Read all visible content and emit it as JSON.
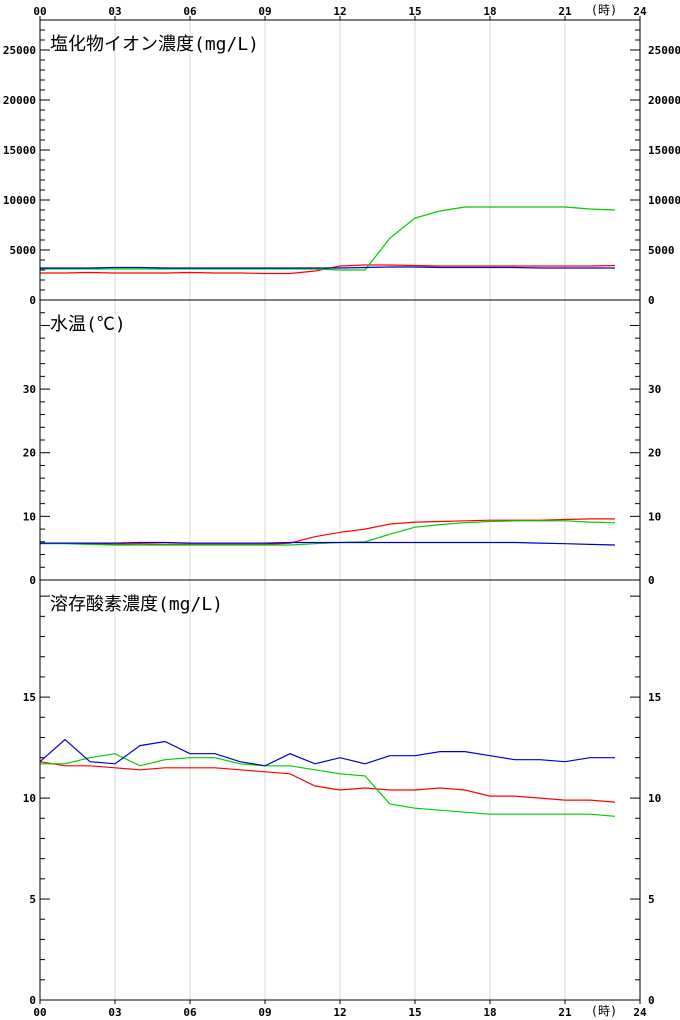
{
  "x_axis": {
    "ticks": [
      "00",
      "03",
      "06",
      "09",
      "12",
      "15",
      "18",
      "21",
      "24"
    ],
    "unit": "(時)",
    "range": [
      0,
      24
    ]
  },
  "colors": {
    "red": "#ff0000",
    "green": "#00cc00",
    "blue": "#0000cc",
    "grid": "#d8d8d8",
    "axis": "#000000"
  },
  "chart_data": [
    {
      "type": "line",
      "title": "塩化物イオン濃度(mg/L)",
      "ylim": [
        0,
        28000
      ],
      "yticks": [
        "0",
        "5000",
        "10000",
        "15000",
        "20000",
        "25000"
      ],
      "ytick_values": [
        0,
        5000,
        10000,
        15000,
        20000,
        25000
      ],
      "x": [
        0,
        1,
        2,
        3,
        4,
        5,
        6,
        7,
        8,
        9,
        10,
        11,
        12,
        13,
        14,
        15,
        16,
        17,
        18,
        19,
        20,
        21,
        22,
        23
      ],
      "series": [
        {
          "color": "red",
          "values": [
            2700,
            2700,
            2750,
            2700,
            2700,
            2700,
            2750,
            2700,
            2700,
            2650,
            2650,
            2900,
            3400,
            3500,
            3500,
            3450,
            3400,
            3400,
            3400,
            3400,
            3400,
            3400,
            3400,
            3450
          ]
        },
        {
          "color": "green",
          "values": [
            3100,
            3100,
            3100,
            3100,
            3100,
            3100,
            3100,
            3100,
            3100,
            3100,
            3100,
            3100,
            3000,
            3000,
            6200,
            8200,
            8900,
            9300,
            9300,
            9300,
            9300,
            9300,
            9100,
            9000
          ]
        },
        {
          "color": "blue",
          "values": [
            3200,
            3200,
            3200,
            3250,
            3250,
            3200,
            3200,
            3200,
            3200,
            3200,
            3200,
            3200,
            3200,
            3250,
            3300,
            3300,
            3250,
            3250,
            3250,
            3250,
            3200,
            3200,
            3200,
            3200
          ]
        }
      ]
    },
    {
      "type": "line",
      "title": "水温(℃)",
      "ylim": [
        0,
        44
      ],
      "yticks": [
        "0",
        "10",
        "20",
        "30"
      ],
      "ytick_values": [
        0,
        10,
        20,
        30
      ],
      "x": [
        0,
        1,
        2,
        3,
        4,
        5,
        6,
        7,
        8,
        9,
        10,
        11,
        12,
        13,
        14,
        15,
        16,
        17,
        18,
        19,
        20,
        21,
        22,
        23
      ],
      "series": [
        {
          "color": "red",
          "values": [
            5.8,
            5.8,
            5.7,
            5.6,
            5.7,
            5.6,
            5.6,
            5.6,
            5.6,
            5.6,
            5.8,
            6.8,
            7.5,
            8.0,
            8.8,
            9.1,
            9.2,
            9.3,
            9.4,
            9.4,
            9.4,
            9.5,
            9.6,
            9.6
          ]
        },
        {
          "color": "green",
          "values": [
            5.7,
            5.7,
            5.6,
            5.5,
            5.5,
            5.5,
            5.5,
            5.5,
            5.5,
            5.5,
            5.5,
            5.7,
            5.9,
            6.0,
            7.2,
            8.3,
            8.7,
            9.0,
            9.2,
            9.3,
            9.3,
            9.3,
            9.1,
            9.0
          ]
        },
        {
          "color": "blue",
          "values": [
            5.8,
            5.8,
            5.8,
            5.8,
            5.9,
            5.9,
            5.8,
            5.8,
            5.8,
            5.8,
            5.9,
            5.9,
            5.9,
            5.9,
            5.9,
            5.9,
            5.9,
            5.9,
            5.9,
            5.9,
            5.8,
            5.7,
            5.6,
            5.5
          ]
        }
      ]
    },
    {
      "type": "line",
      "title": "溶存酸素濃度(mg/L)",
      "ylim": [
        0,
        20.8
      ],
      "yticks": [
        "0",
        "5",
        "10",
        "15"
      ],
      "ytick_values": [
        0,
        5,
        10,
        15
      ],
      "x": [
        0,
        1,
        2,
        3,
        4,
        5,
        6,
        7,
        8,
        9,
        10,
        11,
        12,
        13,
        14,
        15,
        16,
        17,
        18,
        19,
        20,
        21,
        22,
        23
      ],
      "series": [
        {
          "color": "red",
          "values": [
            11.8,
            11.6,
            11.6,
            11.5,
            11.4,
            11.5,
            11.5,
            11.5,
            11.4,
            11.3,
            11.2,
            10.6,
            10.4,
            10.5,
            10.4,
            10.4,
            10.5,
            10.4,
            10.1,
            10.1,
            10.0,
            9.9,
            9.9,
            9.8
          ]
        },
        {
          "color": "green",
          "values": [
            11.7,
            11.7,
            12.0,
            12.2,
            11.6,
            11.9,
            12.0,
            12.0,
            11.7,
            11.6,
            11.6,
            11.4,
            11.2,
            11.1,
            9.7,
            9.5,
            9.4,
            9.3,
            9.2,
            9.2,
            9.2,
            9.2,
            9.2,
            9.1
          ]
        },
        {
          "color": "blue",
          "values": [
            11.8,
            12.9,
            11.8,
            11.7,
            12.6,
            12.8,
            12.2,
            12.2,
            11.8,
            11.6,
            12.2,
            11.7,
            12.0,
            11.7,
            12.1,
            12.1,
            12.3,
            12.3,
            12.1,
            11.9,
            11.9,
            11.8,
            12.0,
            12.0
          ]
        }
      ]
    }
  ]
}
